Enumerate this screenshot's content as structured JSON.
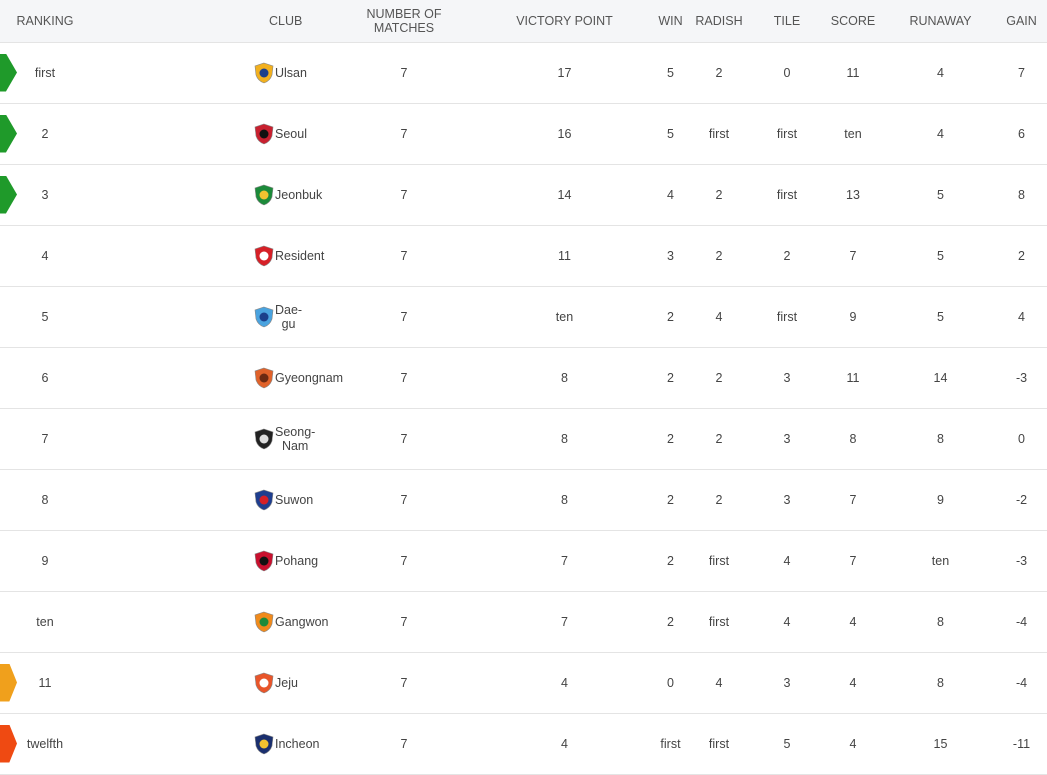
{
  "headers": {
    "ranking": "RANKING",
    "club": "CLUB",
    "matches": "NUMBER OF MATCHES",
    "points": "VICTORY POINT",
    "win": "WIN",
    "draw": "RADISH",
    "loss": "TILE",
    "scored": "SCORE",
    "conceded": "RUNAWAY",
    "gain": "GAIN"
  },
  "colors": {
    "promotion": "#1f9a2a",
    "playoff": "#f0a01c",
    "relegation": "#ef4a12"
  },
  "rows": [
    {
      "rank": "first",
      "club": "Ulsan",
      "crest": "ulsan-crest-icon",
      "marker": "promo",
      "matches": "7",
      "points": "17",
      "win": "5",
      "draw": "2",
      "loss": "0",
      "scored": "11",
      "conceded": "4",
      "gain": "7"
    },
    {
      "rank": "2",
      "club": "Seoul",
      "crest": "seoul-crest-icon",
      "marker": "promo",
      "matches": "7",
      "points": "16",
      "win": "5",
      "draw": "first",
      "loss": "first",
      "scored": "ten",
      "conceded": "4",
      "gain": "6"
    },
    {
      "rank": "3",
      "club": "Jeonbuk",
      "crest": "jeonbuk-crest-icon",
      "marker": "promo",
      "matches": "7",
      "points": "14",
      "win": "4",
      "draw": "2",
      "loss": "first",
      "scored": "13",
      "conceded": "5",
      "gain": "8"
    },
    {
      "rank": "4",
      "club": "Resident",
      "crest": "resident-crest-icon",
      "marker": "",
      "matches": "7",
      "points": "11",
      "win": "3",
      "draw": "2",
      "loss": "2",
      "scored": "7",
      "conceded": "5",
      "gain": "2"
    },
    {
      "rank": "5",
      "club": "Dae-gu",
      "crest": "daegu-crest-icon",
      "marker": "",
      "matches": "7",
      "points": "ten",
      "win": "2",
      "draw": "4",
      "loss": "first",
      "scored": "9",
      "conceded": "5",
      "gain": "4"
    },
    {
      "rank": "6",
      "club": "Gyeongnam",
      "crest": "gyeongnam-crest-icon",
      "marker": "",
      "matches": "7",
      "points": "8",
      "win": "2",
      "draw": "2",
      "loss": "3",
      "scored": "11",
      "conceded": "14",
      "gain": "-3"
    },
    {
      "rank": "7",
      "club": "Seong-Nam",
      "crest": "seongnam-crest-icon",
      "marker": "",
      "matches": "7",
      "points": "8",
      "win": "2",
      "draw": "2",
      "loss": "3",
      "scored": "8",
      "conceded": "8",
      "gain": "0"
    },
    {
      "rank": "8",
      "club": "Suwon",
      "crest": "suwon-crest-icon",
      "marker": "",
      "matches": "7",
      "points": "8",
      "win": "2",
      "draw": "2",
      "loss": "3",
      "scored": "7",
      "conceded": "9",
      "gain": "-2"
    },
    {
      "rank": "9",
      "club": "Pohang",
      "crest": "pohang-crest-icon",
      "marker": "",
      "matches": "7",
      "points": "7",
      "win": "2",
      "draw": "first",
      "loss": "4",
      "scored": "7",
      "conceded": "ten",
      "gain": "-3"
    },
    {
      "rank": "ten",
      "club": "Gangwon",
      "crest": "gangwon-crest-icon",
      "marker": "",
      "matches": "7",
      "points": "7",
      "win": "2",
      "draw": "first",
      "loss": "4",
      "scored": "4",
      "conceded": "8",
      "gain": "-4"
    },
    {
      "rank": "11",
      "club": "Jeju",
      "crest": "jeju-crest-icon",
      "marker": "playoff",
      "matches": "7",
      "points": "4",
      "win": "0",
      "draw": "4",
      "loss": "3",
      "scored": "4",
      "conceded": "8",
      "gain": "-4"
    },
    {
      "rank": "twelfth",
      "club": "Incheon",
      "crest": "incheon-crest-icon",
      "marker": "releg",
      "matches": "7",
      "points": "4",
      "win": "first",
      "draw": "first",
      "loss": "5",
      "scored": "4",
      "conceded": "15",
      "gain": "-11"
    }
  ]
}
